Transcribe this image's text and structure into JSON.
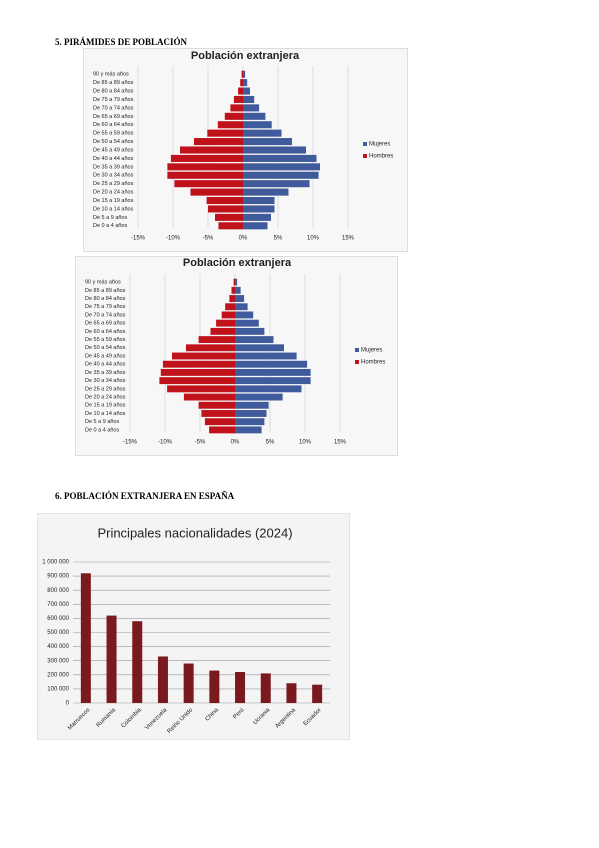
{
  "headings": [
    "5.   PIRÁMIDES DE POBLACIÓN",
    "6.   POBLACIÓN EXTRANJERA EN ESPAÑA"
  ],
  "chart_data": [
    {
      "type": "pyramid",
      "title": "Población extranjera",
      "categories": [
        "90 y más años",
        "De 85 a 89 años",
        "De 80 a 84 años",
        "De 75 a 79 años",
        "De 70 a 74 años",
        "De 65 a 69 años",
        "De 60 a 64 años",
        "De 55 a 59 años",
        "De 50 a 54 años",
        "De 45 a 49 años",
        "De 40 a 44 años",
        "De 35 a 39 años",
        "De 30 a 34 años",
        "De 25 a 29 años",
        "De 20 a 24 años",
        "De 15 a 19 años",
        "De 10 a 14 años",
        "De 5 a 9 años",
        "De 0 a 4 años"
      ],
      "series": [
        {
          "name": "Mujeres",
          "color": "#3f5b9b",
          "values": [
            0.3,
            0.6,
            1.0,
            1.6,
            2.3,
            3.2,
            4.1,
            5.5,
            7.0,
            9.0,
            10.5,
            11.0,
            10.8,
            9.5,
            6.5,
            4.5,
            4.5,
            4.0,
            3.5
          ]
        },
        {
          "name": "Hombres",
          "color": "#c0121b",
          "values": [
            -0.2,
            -0.4,
            -0.7,
            -1.3,
            -1.8,
            -2.6,
            -3.6,
            -5.1,
            -7.0,
            -9.0,
            -10.3,
            -10.8,
            -10.8,
            -9.8,
            -7.5,
            -5.2,
            -5.0,
            -4.0,
            -3.5
          ]
        }
      ],
      "xlim": [
        -15,
        15
      ],
      "xticks": [
        {
          "value": -15,
          "label": "-15%"
        },
        {
          "value": -10,
          "label": "-10%"
        },
        {
          "value": -5,
          "label": "-5%"
        },
        {
          "value": 0,
          "label": "0%"
        },
        {
          "value": 5,
          "label": "5%"
        },
        {
          "value": 10,
          "label": "10%"
        },
        {
          "value": 15,
          "label": "15%"
        }
      ],
      "grid": true,
      "legend": "right"
    },
    {
      "type": "pyramid",
      "title": "Población extranjera",
      "categories": [
        "90 y más años",
        "De 85 a 89 años",
        "De 80 a 84 años",
        "De 75 a 79 años",
        "De 70 a 74 años",
        "De 65 a 69 años",
        "De 60 a 64 años",
        "De 55 a 59 años",
        "De 50 a 54 años",
        "De 45 a 49 años",
        "De 40 a 44 años",
        "De 35 a 39 años",
        "De 30 a 34 años",
        "De 25 a 29 años",
        "De 20 a 24 años",
        "De 15 a 19 años",
        "De 10 a 14 años",
        "De 5 a 9 años",
        "De 0 a 4 años"
      ],
      "series": [
        {
          "name": "Mujeres",
          "color": "#3f5b9b",
          "values": [
            0.3,
            0.8,
            1.3,
            1.8,
            2.6,
            3.4,
            4.2,
            5.5,
            7.0,
            8.8,
            10.3,
            10.8,
            10.8,
            9.5,
            6.8,
            4.8,
            4.5,
            4.2,
            3.8
          ]
        },
        {
          "name": "Hombres",
          "color": "#c0121b",
          "values": [
            -0.2,
            -0.5,
            -0.8,
            -1.4,
            -1.9,
            -2.7,
            -3.5,
            -5.2,
            -7.0,
            -9.0,
            -10.3,
            -10.6,
            -10.8,
            -9.7,
            -7.3,
            -5.2,
            -4.8,
            -4.3,
            -3.7
          ]
        }
      ],
      "xlim": [
        -15,
        15
      ],
      "xticks": [
        {
          "value": -15,
          "label": "-15%"
        },
        {
          "value": -10,
          "label": "-10%"
        },
        {
          "value": -5,
          "label": "-5%"
        },
        {
          "value": 0,
          "label": "0%"
        },
        {
          "value": 5,
          "label": "5%"
        },
        {
          "value": 10,
          "label": "10%"
        },
        {
          "value": 15,
          "label": "15%"
        }
      ],
      "grid": true,
      "legend": "right"
    },
    {
      "type": "bar",
      "title": "Principales nacionalidades (2024)",
      "categories": [
        "Marruecos",
        "Rumanía",
        "Colombia",
        "Venezuela",
        "Reino Unido",
        "China",
        "Perú",
        "Ucrania",
        "Argentina",
        "Ecuador"
      ],
      "values": [
        920000,
        620000,
        580000,
        330000,
        280000,
        230000,
        220000,
        210000,
        140000,
        130000
      ],
      "color": "#7a1a1e",
      "ylim": [
        0,
        1000000
      ],
      "yticks": [
        0,
        {
          "value": 100000,
          "label": "100 000"
        },
        {
          "value": 200000,
          "label": "200 000"
        },
        {
          "value": 300000,
          "label": "300 000"
        },
        {
          "value": 400000,
          "label": "400 000"
        },
        {
          "value": 500000,
          "label": "500 000"
        },
        {
          "value": 600000,
          "label": "600 000"
        },
        {
          "value": 700000,
          "label": "700 000"
        },
        {
          "value": 800000,
          "label": "800 000"
        },
        {
          "value": 900000,
          "label": "900 000"
        },
        {
          "value": 1000000,
          "label": "1 000 000"
        }
      ],
      "grid": true
    }
  ]
}
